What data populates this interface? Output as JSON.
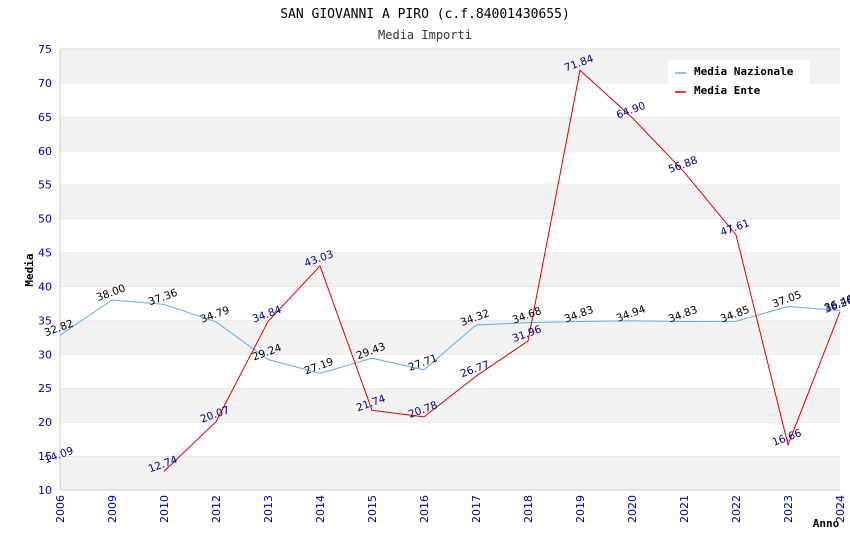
{
  "title": "SAN GIOVANNI A PIRO (c.f.84001430655)",
  "subtitle": "Media Importi",
  "chart_data": {
    "type": "line",
    "categories": [
      "2006",
      "2009",
      "2010",
      "2012",
      "2013",
      "2014",
      "2015",
      "2016",
      "2017",
      "2018",
      "2019",
      "2020",
      "2021",
      "2022",
      "2023",
      "2024"
    ],
    "xlabel": "Anno",
    "ylabel": "Media",
    "ylim": [
      10,
      75
    ],
    "yticks": [
      "10",
      "15",
      "20",
      "25",
      "30",
      "35",
      "40",
      "45",
      "50",
      "55",
      "60",
      "65",
      "70",
      "75"
    ],
    "grid": "horizontal bands",
    "legend_position": "top-right",
    "series": [
      {
        "name": "Media Nazionale",
        "color": "#66aaee",
        "label_color": "#000000",
        "values": [
          32.82,
          38.0,
          37.36,
          34.79,
          29.24,
          27.19,
          29.43,
          27.71,
          34.32,
          34.68,
          34.83,
          34.94,
          34.83,
          34.85,
          37.05,
          36.46
        ],
        "labels": [
          "32.82",
          "38.00",
          "37.36",
          "34.79",
          "29.24",
          "27.19",
          "29.43",
          "27.71",
          "34.32",
          "34.68",
          "34.83",
          "34.94",
          "34.83",
          "34.85",
          "37.05",
          "36.46"
        ]
      },
      {
        "name": "Media Ente",
        "color": "#dd0000",
        "label_color": "#000080",
        "values": [
          null,
          null,
          12.74,
          20.07,
          34.84,
          43.03,
          21.74,
          20.78,
          26.77,
          31.96,
          71.84,
          64.9,
          56.88,
          47.61,
          16.66,
          36.26
        ],
        "labels": [
          "14.09",
          null,
          "12.74",
          "20.07",
          "34.84",
          "43.03",
          "21.74",
          "20.78",
          "26.77",
          "31.96",
          "71.84",
          "64.90",
          "56.88",
          "47.61",
          "16.66",
          "36.26"
        ],
        "extra_label": {
          "text": "14.09",
          "value": 14.09
        }
      }
    ]
  }
}
